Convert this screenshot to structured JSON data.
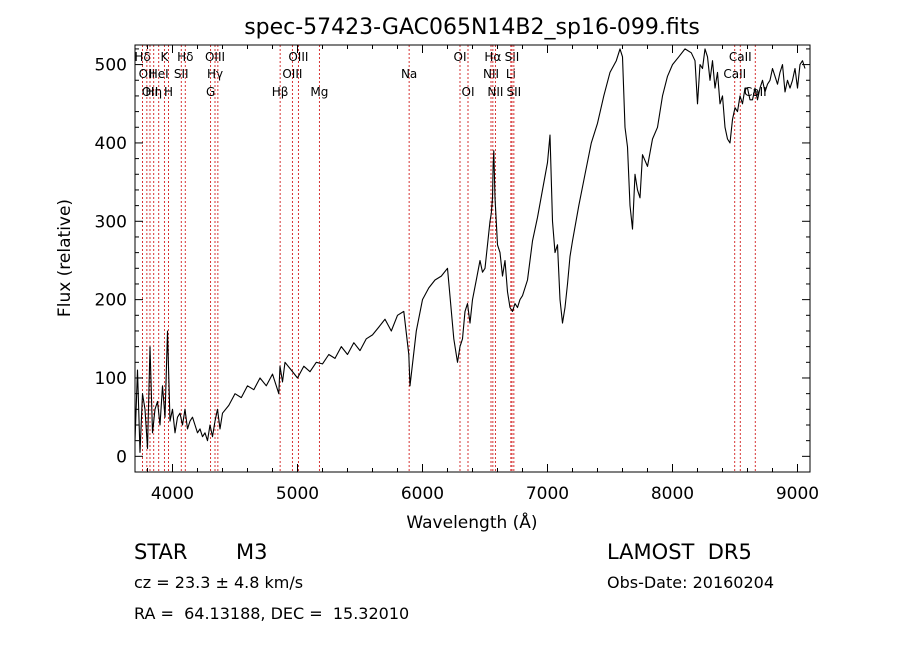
{
  "chart_data": {
    "type": "line",
    "title": "spec-57423-GAC065N14B2_sp16-099.fits",
    "xlabel": "Wavelength (Å)",
    "ylabel": "Flux (relative)",
    "xlim": [
      3700,
      9100
    ],
    "ylim": [
      -20,
      525
    ],
    "xticks": [
      4000,
      5000,
      6000,
      7000,
      8000,
      9000
    ],
    "yticks": [
      0,
      100,
      200,
      300,
      400,
      500
    ],
    "grid": false,
    "line_color": "#000000",
    "marker_color": "#cc0000",
    "series": [
      {
        "x": [
          3700,
          3720,
          3740,
          3760,
          3780,
          3800,
          3820,
          3840,
          3860,
          3880,
          3900,
          3920,
          3940,
          3960,
          3980,
          4000,
          4020,
          4040,
          4060,
          4080,
          4100,
          4120,
          4140,
          4160,
          4180,
          4200,
          4220,
          4240,
          4260,
          4280,
          4300,
          4320,
          4340,
          4360,
          4380,
          4400,
          4450,
          4500,
          4550,
          4600,
          4650,
          4700,
          4750,
          4800,
          4850,
          4860,
          4880,
          4900,
          4950,
          5000,
          5050,
          5100,
          5150,
          5200,
          5250,
          5300,
          5350,
          5400,
          5450,
          5500,
          5550,
          5600,
          5650,
          5700,
          5750,
          5800,
          5850,
          5890,
          5900,
          5950,
          6000,
          6050,
          6100,
          6150,
          6200,
          6250,
          6280,
          6300,
          6320,
          6340,
          6360,
          6380,
          6400,
          6430,
          6460,
          6480,
          6500,
          6520,
          6540,
          6550,
          6560,
          6565,
          6570,
          6580,
          6600,
          6620,
          6640,
          6660,
          6680,
          6700,
          6720,
          6740,
          6760,
          6780,
          6800,
          6840,
          6880,
          6920,
          6960,
          7000,
          7020,
          7040,
          7060,
          7080,
          7100,
          7120,
          7140,
          7160,
          7180,
          7200,
          7250,
          7300,
          7350,
          7400,
          7450,
          7500,
          7550,
          7580,
          7600,
          7620,
          7640,
          7660,
          7680,
          7700,
          7720,
          7740,
          7760,
          7800,
          7840,
          7880,
          7920,
          7960,
          8000,
          8050,
          8100,
          8150,
          8180,
          8200,
          8220,
          8240,
          8260,
          8280,
          8300,
          8320,
          8340,
          8360,
          8380,
          8400,
          8420,
          8440,
          8460,
          8480,
          8500,
          8520,
          8540,
          8560,
          8580,
          8600,
          8620,
          8640,
          8660,
          8680,
          8700,
          8720,
          8740,
          8760,
          8780,
          8800,
          8820,
          8840,
          8860,
          8880,
          8900,
          8920,
          8940,
          8960,
          8980,
          9000,
          9020,
          9040,
          9060
        ],
        "y": [
          20,
          110,
          5,
          80,
          60,
          10,
          140,
          30,
          60,
          70,
          40,
          90,
          50,
          160,
          45,
          60,
          30,
          50,
          55,
          40,
          60,
          35,
          45,
          50,
          40,
          30,
          35,
          25,
          30,
          20,
          40,
          25,
          45,
          60,
          35,
          55,
          65,
          80,
          75,
          90,
          85,
          100,
          90,
          105,
          80,
          115,
          95,
          120,
          110,
          100,
          115,
          108,
          120,
          118,
          130,
          125,
          140,
          130,
          145,
          135,
          150,
          155,
          165,
          175,
          160,
          180,
          185,
          130,
          90,
          160,
          200,
          215,
          225,
          230,
          240,
          150,
          120,
          140,
          150,
          185,
          195,
          170,
          200,
          225,
          250,
          235,
          240,
          270,
          300,
          310,
          330,
          370,
          390,
          330,
          270,
          260,
          230,
          250,
          210,
          190,
          185,
          195,
          190,
          200,
          205,
          225,
          275,
          305,
          340,
          375,
          410,
          300,
          260,
          270,
          200,
          170,
          190,
          220,
          255,
          275,
          320,
          360,
          400,
          425,
          460,
          490,
          505,
          520,
          510,
          420,
          395,
          320,
          290,
          360,
          340,
          330,
          385,
          370,
          405,
          420,
          460,
          485,
          500,
          510,
          520,
          515,
          505,
          450,
          500,
          495,
          520,
          510,
          480,
          505,
          470,
          490,
          450,
          460,
          420,
          405,
          400,
          430,
          445,
          440,
          460,
          450,
          470,
          470,
          455,
          455,
          470,
          455,
          470,
          480,
          465,
          475,
          480,
          495,
          485,
          475,
          490,
          500,
          465,
          480,
          470,
          480,
          495,
          470,
          500,
          505,
          495
        ]
      }
    ],
    "lines": [
      {
        "x": 3760,
        "labels": [
          {
            "text": "Hδ",
            "row": 1
          }
        ]
      },
      {
        "x": 3795,
        "labels": [
          {
            "text": "OII",
            "row": 2
          }
        ]
      },
      {
        "x": 3820,
        "labels": [
          {
            "text": "OII",
            "row": 3
          }
        ]
      },
      {
        "x": 3850,
        "labels": [
          {
            "text": "Hη",
            "row": 3
          }
        ]
      },
      {
        "x": 3890,
        "labels": [
          {
            "text": "HeI",
            "row": 2
          }
        ]
      },
      {
        "x": 3935,
        "labels": [
          {
            "text": "K",
            "row": 1
          }
        ]
      },
      {
        "x": 3968,
        "labels": [
          {
            "text": "H",
            "row": 3
          }
        ]
      },
      {
        "x": 4070,
        "labels": [
          {
            "text": "SII",
            "row": 2
          }
        ]
      },
      {
        "x": 4102,
        "labels": [
          {
            "text": "Hδ",
            "row": 1
          }
        ]
      },
      {
        "x": 4305,
        "labels": [
          {
            "text": "G",
            "row": 3
          }
        ]
      },
      {
        "x": 4340,
        "labels": [
          {
            "text": "OIII",
            "row": 1
          },
          {
            "text": "Hγ",
            "row": 2
          }
        ]
      },
      {
        "x": 4363,
        "labels": []
      },
      {
        "x": 4861,
        "labels": [
          {
            "text": "Hβ",
            "row": 3
          }
        ]
      },
      {
        "x": 4959,
        "labels": [
          {
            "text": "OIII",
            "row": 2
          }
        ]
      },
      {
        "x": 5007,
        "labels": [
          {
            "text": "OIII",
            "row": 1
          }
        ]
      },
      {
        "x": 5175,
        "labels": [
          {
            "text": "Mg",
            "row": 3
          }
        ]
      },
      {
        "x": 5893,
        "labels": [
          {
            "text": "Na",
            "row": 2
          }
        ]
      },
      {
        "x": 6300,
        "labels": [
          {
            "text": "OI",
            "row": 1
          }
        ]
      },
      {
        "x": 6364,
        "labels": [
          {
            "text": "OI",
            "row": 3
          }
        ]
      },
      {
        "x": 6548,
        "labels": [
          {
            "text": "NII",
            "row": 2
          }
        ]
      },
      {
        "x": 6563,
        "labels": [
          {
            "text": "Hα",
            "row": 1
          }
        ]
      },
      {
        "x": 6583,
        "labels": [
          {
            "text": "NII",
            "row": 3
          }
        ]
      },
      {
        "x": 6707,
        "labels": [
          {
            "text": "Li",
            "row": 2
          }
        ]
      },
      {
        "x": 6716,
        "labels": [
          {
            "text": "SII",
            "row": 1
          }
        ]
      },
      {
        "x": 6731,
        "labels": [
          {
            "text": "SII",
            "row": 3
          }
        ]
      },
      {
        "x": 8498,
        "labels": [
          {
            "text": "CaII",
            "row": 2
          }
        ]
      },
      {
        "x": 8542,
        "labels": [
          {
            "text": "CaII",
            "row": 1
          }
        ]
      },
      {
        "x": 8662,
        "labels": [
          {
            "text": "CaII",
            "row": 3
          }
        ]
      }
    ]
  },
  "info": {
    "object_class": "STAR",
    "subclass": "M3",
    "survey": "LAMOST  DR5",
    "cz": "cz = 23.3 ± 4.8 km/s",
    "obs_date": "Obs-Date: 20160204",
    "coords": "RA =  64.13188, DEC =  15.32010"
  }
}
